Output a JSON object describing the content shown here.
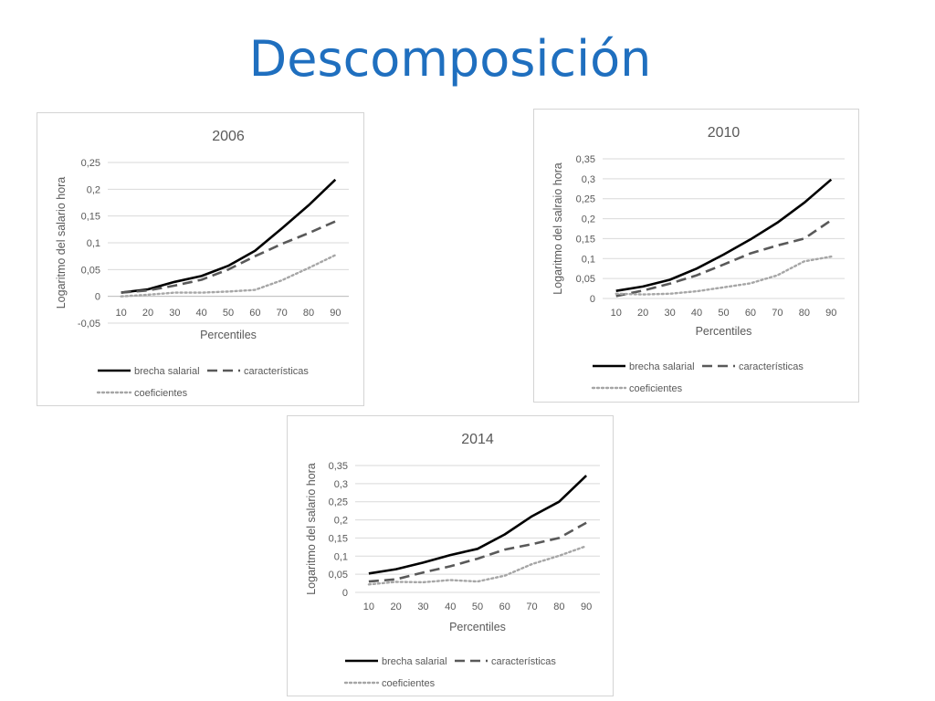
{
  "slide": {
    "title": "Descomposición"
  },
  "chart_data": [
    {
      "id": "chart-2006",
      "type": "line",
      "title": "2006",
      "xlabel": "Percentiles",
      "ylabel": "Logaritmo del salario hora",
      "categories": [
        "10",
        "20",
        "30",
        "40",
        "50",
        "60",
        "70",
        "80",
        "90"
      ],
      "yticks": [
        "-0,05",
        "0",
        "0,05",
        "0,1",
        "0,15",
        "0,2",
        "0,25"
      ],
      "ylim": [
        -0.05,
        0.25
      ],
      "grid": true,
      "legend_position": "bottom",
      "series": [
        {
          "name": "brecha salarial",
          "style": "solid",
          "color": "#000000",
          "values": [
            0.007,
            0.013,
            0.027,
            0.038,
            0.057,
            0.085,
            0.127,
            0.17,
            0.218
          ]
        },
        {
          "name": "características",
          "style": "dashed",
          "color": "#595959",
          "values": [
            0.007,
            0.011,
            0.02,
            0.031,
            0.05,
            0.075,
            0.098,
            0.118,
            0.14
          ]
        },
        {
          "name": "coeficientes",
          "style": "dotted",
          "color": "#a6a6a6",
          "values": [
            0.0,
            0.003,
            0.007,
            0.007,
            0.009,
            0.012,
            0.03,
            0.053,
            0.077
          ]
        }
      ]
    },
    {
      "id": "chart-2010",
      "type": "line",
      "title": "2010",
      "xlabel": "Percentiles",
      "ylabel": "Logaritmo  del salraio hora",
      "categories": [
        "10",
        "20",
        "30",
        "40",
        "50",
        "60",
        "70",
        "80",
        "90"
      ],
      "yticks": [
        "0",
        "0,05",
        "0,1",
        "0,15",
        "0,2",
        "0,25",
        "0,3",
        "0,35"
      ],
      "ylim": [
        0,
        0.35
      ],
      "grid": true,
      "legend_position": "bottom",
      "series": [
        {
          "name": "brecha salarial",
          "style": "solid",
          "color": "#000000",
          "values": [
            0.019,
            0.03,
            0.047,
            0.075,
            0.11,
            0.148,
            0.19,
            0.24,
            0.298
          ]
        },
        {
          "name": "características",
          "style": "dashed",
          "color": "#595959",
          "values": [
            0.006,
            0.02,
            0.037,
            0.058,
            0.085,
            0.113,
            0.133,
            0.15,
            0.196
          ]
        },
        {
          "name": "coeficientes",
          "style": "dotted",
          "color": "#a6a6a6",
          "values": [
            0.012,
            0.01,
            0.012,
            0.018,
            0.028,
            0.038,
            0.058,
            0.093,
            0.105
          ]
        }
      ]
    },
    {
      "id": "chart-2014",
      "type": "line",
      "title": "2014",
      "xlabel": "Percentiles",
      "ylabel": "Logaritmo del salario hora",
      "categories": [
        "10",
        "20",
        "30",
        "40",
        "50",
        "60",
        "70",
        "80",
        "90"
      ],
      "yticks": [
        "0",
        "0,05",
        "0,1",
        "0,15",
        "0,2",
        "0,25",
        "0,3",
        "0,35"
      ],
      "ylim": [
        0,
        0.35
      ],
      "grid": true,
      "legend_position": "bottom",
      "series": [
        {
          "name": "brecha salarial",
          "style": "solid",
          "color": "#000000",
          "values": [
            0.052,
            0.064,
            0.082,
            0.103,
            0.12,
            0.16,
            0.21,
            0.25,
            0.322
          ]
        },
        {
          "name": "características",
          "style": "dashed",
          "color": "#595959",
          "values": [
            0.03,
            0.036,
            0.055,
            0.072,
            0.093,
            0.118,
            0.133,
            0.15,
            0.192
          ]
        },
        {
          "name": "coeficientes",
          "style": "dotted",
          "color": "#a6a6a6",
          "values": [
            0.022,
            0.029,
            0.028,
            0.034,
            0.03,
            0.046,
            0.078,
            0.101,
            0.128
          ]
        }
      ]
    }
  ]
}
